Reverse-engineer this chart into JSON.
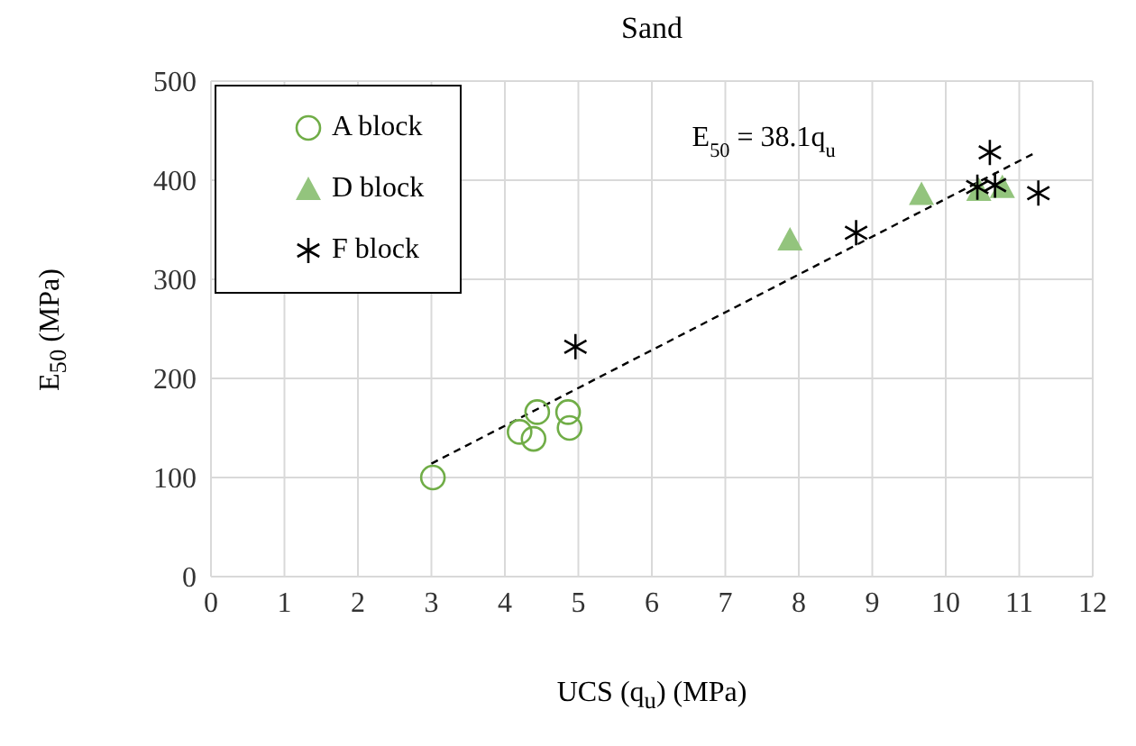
{
  "chart_data": {
    "type": "scatter",
    "title": "Sand",
    "xlabel": "UCS (q$_{u}$) (MPa)",
    "ylabel": "E$_{50}$ (MPa)",
    "xlim": [
      0,
      12
    ],
    "xticks": [
      0,
      1,
      2,
      3,
      4,
      5,
      6,
      7,
      8,
      9,
      10,
      11,
      12
    ],
    "ylim": [
      0,
      500
    ],
    "yticks": [
      0,
      100,
      200,
      300,
      400,
      500
    ],
    "grid": true,
    "legend": "top left",
    "annotations": [
      "E$_{50}$ = 38.1q$_{u}$"
    ],
    "series": [
      {
        "name": "A block",
        "marker": "circle",
        "color": "#70ad47",
        "x": [
          3.02,
          4.2,
          4.39,
          4.44,
          4.86,
          4.88
        ],
        "values": [
          100,
          146,
          139,
          166,
          166,
          150
        ]
      },
      {
        "name": "D block",
        "marker": "triangle",
        "color": "#93c47d",
        "x": [
          7.88,
          9.67,
          10.45,
          10.77
        ],
        "values": [
          340,
          386,
          390,
          393
        ]
      },
      {
        "name": "F block",
        "marker": "cross",
        "color": "#000000",
        "x": [
          4.96,
          8.78,
          10.43,
          10.6,
          10.67,
          11.26
        ],
        "values": [
          232,
          347,
          393,
          428,
          395,
          387
        ]
      },
      {
        "type": "line",
        "line_style": "dashed",
        "marker": "none",
        "color": "#000000",
        "x": [
          3.0,
          11.2
        ],
        "values": [
          114,
          427
        ]
      }
    ]
  }
}
